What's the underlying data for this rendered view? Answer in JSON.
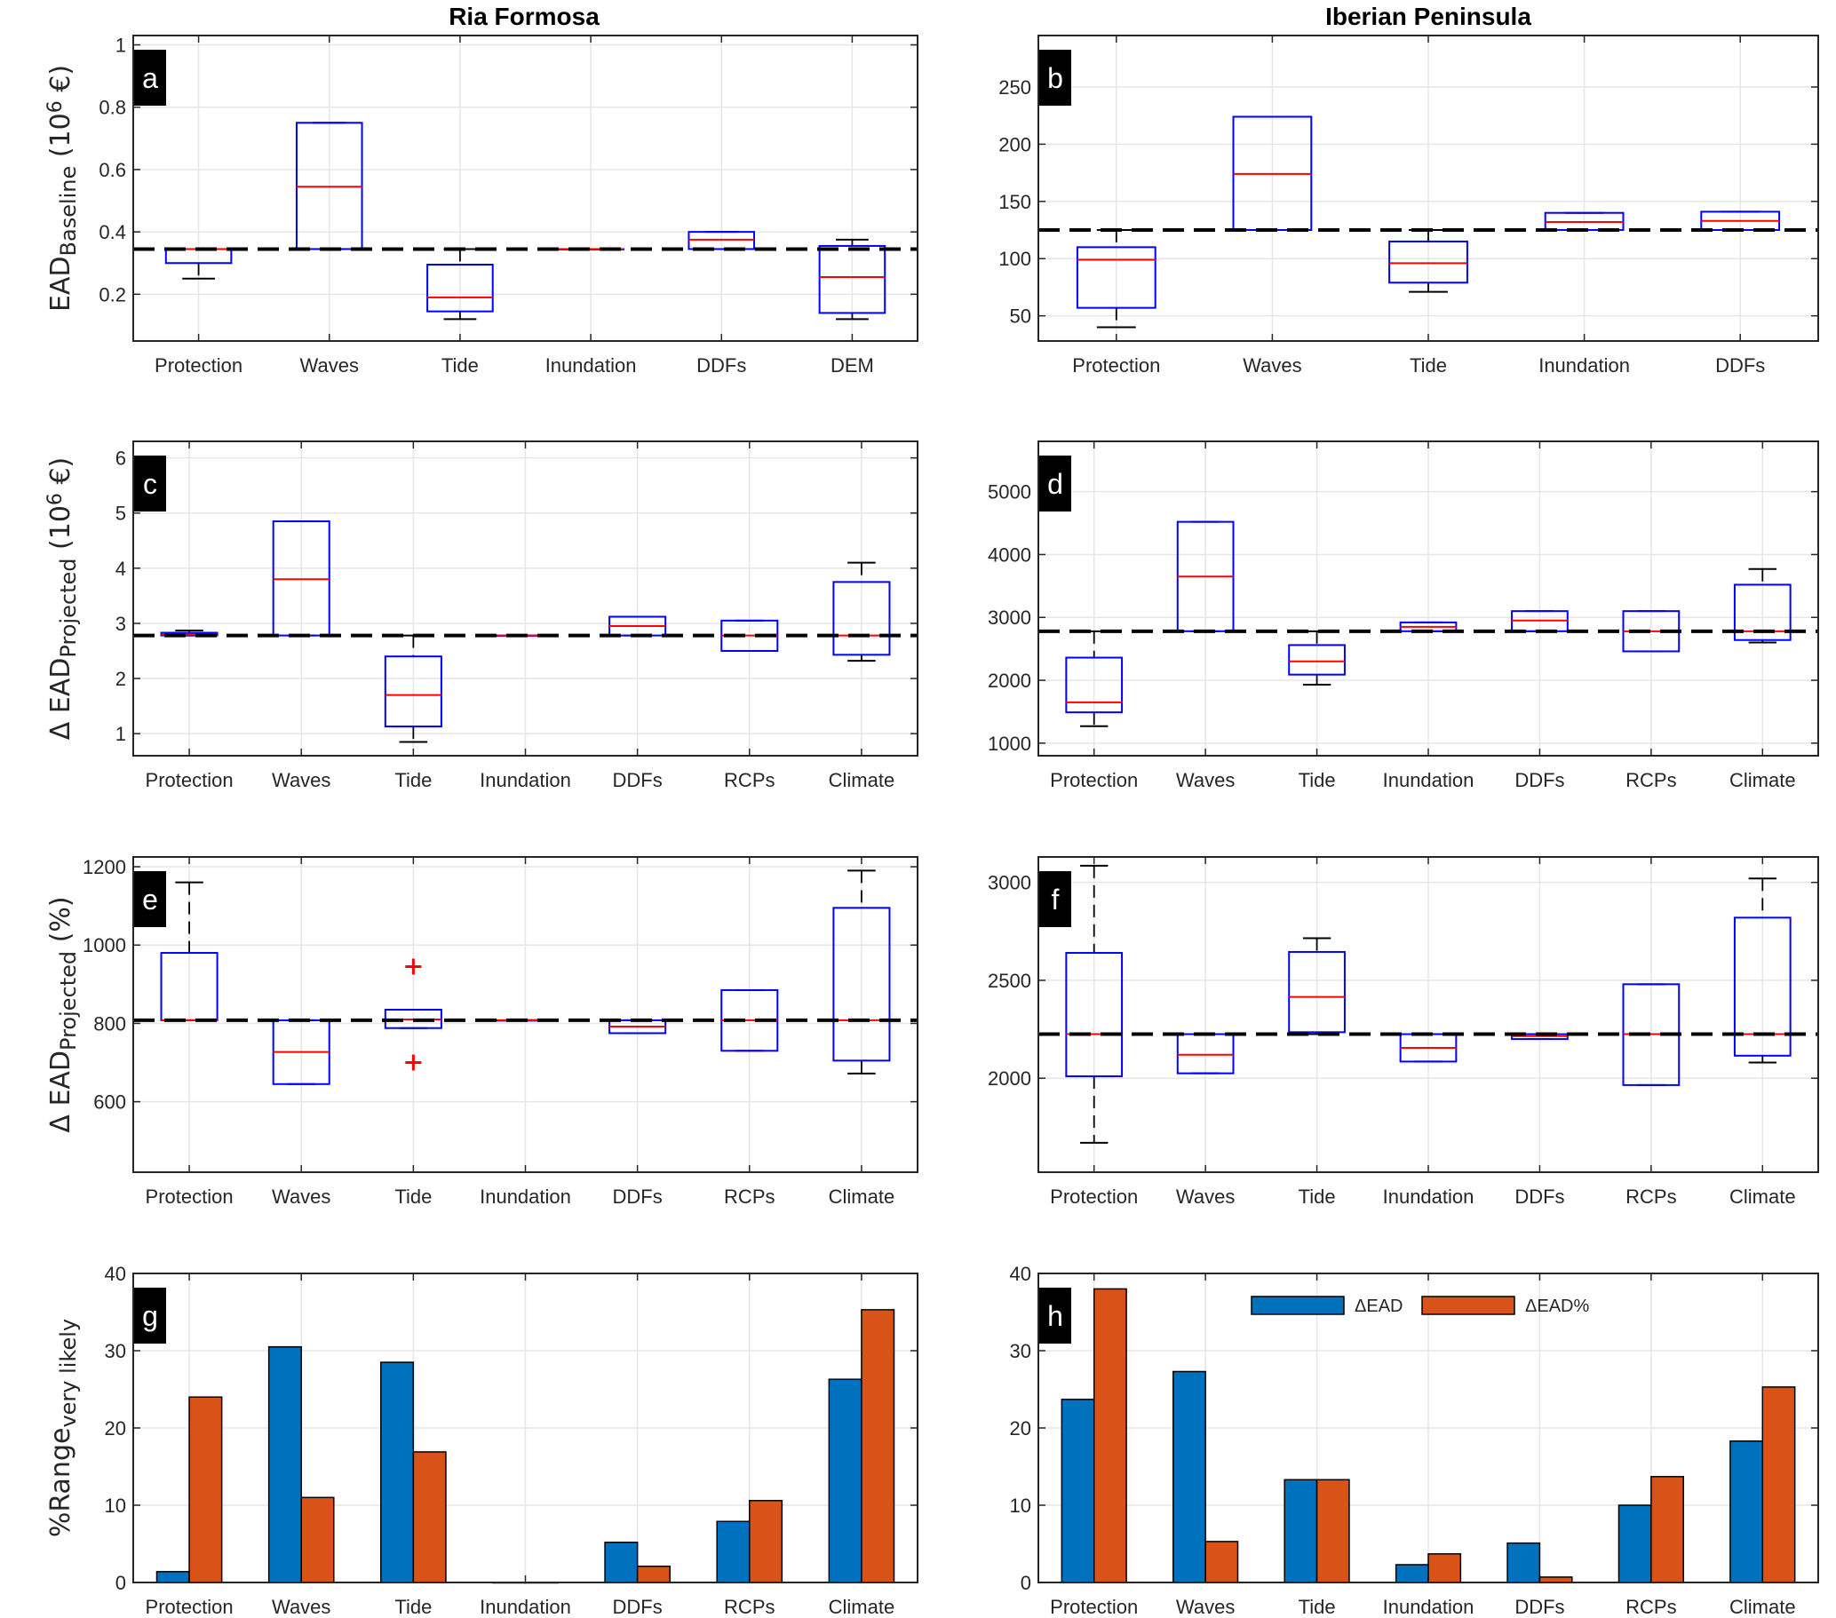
{
  "titles": [
    "Ria Formosa",
    "Iberian Peninsula"
  ],
  "colors": {
    "box": "#0000ff",
    "median": "#ff0000",
    "whisker": "#000000",
    "baseline": "#000000",
    "bar1": "#0072bd",
    "bar2": "#d95319",
    "outlier": "#ff0000",
    "grid": "#e6e6e6"
  },
  "chart_data": [
    {
      "id": "a",
      "type": "boxplot",
      "letter": "a",
      "categories": [
        "Protection",
        "Waves",
        "Tide",
        "Inundation",
        "DDFs",
        "DEM"
      ],
      "ylabel": [
        {
          "t": "EAD",
          "s": ""
        },
        {
          "t": "Baseline",
          "s": "sub"
        },
        {
          "t": " (10",
          "s": ""
        },
        {
          "t": "6",
          "s": "sup"
        },
        {
          "t": " €)",
          "s": ""
        }
      ],
      "ylim": [
        0.05,
        1.03
      ],
      "yticks": [
        0.2,
        0.4,
        0.6,
        0.8,
        1
      ],
      "ytick_labels": [
        "0.2",
        "0.4",
        "0.6",
        "0.8",
        "1"
      ],
      "baseline": 0.345,
      "boxes": [
        [
          0.25,
          0.3,
          0.345,
          0.345,
          0.345
        ],
        [
          0.345,
          0.345,
          0.545,
          0.75,
          0.75
        ],
        [
          0.12,
          0.145,
          0.19,
          0.295,
          0.345
        ],
        [
          0.345,
          0.345,
          0.345,
          0.345,
          0.345
        ],
        [
          0.345,
          0.345,
          0.375,
          0.4,
          0.4
        ],
        [
          0.12,
          0.14,
          0.255,
          0.355,
          0.375
        ]
      ],
      "outliers": []
    },
    {
      "id": "b",
      "type": "boxplot",
      "letter": "b",
      "categories": [
        "Protection",
        "Waves",
        "Tide",
        "Inundation",
        "DDFs"
      ],
      "ylabel": [],
      "ylim": [
        28,
        295
      ],
      "yticks": [
        50,
        100,
        150,
        200,
        250
      ],
      "ytick_labels": [
        "50",
        "100",
        "150",
        "200",
        "250"
      ],
      "baseline": 125,
      "boxes": [
        [
          40,
          57,
          99,
          110,
          125
        ],
        [
          125,
          125,
          174,
          224,
          224
        ],
        [
          71,
          79,
          96,
          115,
          125
        ],
        [
          125,
          125,
          132,
          140,
          140
        ],
        [
          125,
          125,
          133,
          141,
          141
        ]
      ],
      "outliers": []
    },
    {
      "id": "c",
      "type": "boxplot",
      "letter": "c",
      "categories": [
        "Protection",
        "Waves",
        "Tide",
        "Inundation",
        "DDFs",
        "RCPs",
        "Climate"
      ],
      "ylabel": [
        {
          "t": "Δ EAD",
          "s": ""
        },
        {
          "t": "Projected",
          "s": "sub"
        },
        {
          "t": " (10",
          "s": ""
        },
        {
          "t": "6",
          "s": "sup"
        },
        {
          "t": " €)",
          "s": ""
        }
      ],
      "ylim": [
        0.6,
        6.3
      ],
      "yticks": [
        1,
        2,
        3,
        4,
        5,
        6
      ],
      "ytick_labels": [
        "1",
        "2",
        "3",
        "4",
        "5",
        "6"
      ],
      "baseline": 2.78,
      "boxes": [
        [
          2.78,
          2.78,
          2.8,
          2.83,
          2.87
        ],
        [
          2.78,
          2.78,
          3.8,
          4.85,
          4.85
        ],
        [
          0.85,
          1.13,
          1.7,
          2.4,
          2.78
        ],
        [
          2.78,
          2.78,
          2.78,
          2.78,
          2.78
        ],
        [
          2.78,
          2.78,
          2.95,
          3.12,
          3.12
        ],
        [
          2.5,
          2.5,
          2.78,
          3.05,
          3.05
        ],
        [
          2.32,
          2.43,
          2.78,
          3.75,
          4.1
        ]
      ],
      "outliers": []
    },
    {
      "id": "d",
      "type": "boxplot",
      "letter": "d",
      "categories": [
        "Protection",
        "Waves",
        "Tide",
        "Inundation",
        "DDFs",
        "RCPs",
        "Climate"
      ],
      "ylabel": [],
      "ylim": [
        800,
        5800
      ],
      "yticks": [
        1000,
        2000,
        3000,
        4000,
        5000
      ],
      "ytick_labels": [
        "1000",
        "2000",
        "3000",
        "4000",
        "5000"
      ],
      "baseline": 2780,
      "boxes": [
        [
          1270,
          1490,
          1650,
          2360,
          2780
        ],
        [
          2780,
          2780,
          3650,
          4520,
          4520
        ],
        [
          1930,
          2090,
          2300,
          2560,
          2780
        ],
        [
          2780,
          2780,
          2850,
          2920,
          2920
        ],
        [
          2780,
          2780,
          2950,
          3100,
          3100
        ],
        [
          2460,
          2460,
          2780,
          3100,
          3100
        ],
        [
          2600,
          2640,
          2780,
          3520,
          3770
        ]
      ],
      "outliers": []
    },
    {
      "id": "e",
      "type": "boxplot",
      "letter": "e",
      "categories": [
        "Protection",
        "Waves",
        "Tide",
        "Inundation",
        "DDFs",
        "RCPs",
        "Climate"
      ],
      "ylabel": [
        {
          "t": "Δ EAD",
          "s": ""
        },
        {
          "t": "Projected",
          "s": "sub"
        },
        {
          "t": "  (%)",
          "s": ""
        }
      ],
      "ylim": [
        420,
        1225
      ],
      "yticks": [
        600,
        800,
        1000,
        1200
      ],
      "ytick_labels": [
        "600",
        "800",
        "1000",
        "1200"
      ],
      "baseline": 808,
      "boxes": [
        [
          808,
          808,
          808,
          980,
          1160
        ],
        [
          645,
          645,
          727,
          808,
          808
        ],
        [
          788,
          788,
          810,
          835,
          835
        ],
        [
          808,
          808,
          808,
          808,
          808
        ],
        [
          775,
          775,
          792,
          808,
          808
        ],
        [
          730,
          730,
          808,
          885,
          885
        ],
        [
          672,
          705,
          808,
          1095,
          1190
        ]
      ],
      "outliers": [
        [
          3,
          945
        ],
        [
          3,
          700
        ]
      ]
    },
    {
      "id": "f",
      "type": "boxplot",
      "letter": "f",
      "categories": [
        "Protection",
        "Waves",
        "Tide",
        "Inundation",
        "DDFs",
        "RCPs",
        "Climate"
      ],
      "ylabel": [],
      "ylim": [
        1520,
        3130
      ],
      "yticks": [
        2000,
        2500,
        3000
      ],
      "ytick_labels": [
        "2000",
        "2500",
        "3000"
      ],
      "baseline": 2225,
      "boxes": [
        [
          1670,
          2010,
          2225,
          2640,
          3085
        ],
        [
          2025,
          2025,
          2120,
          2225,
          2225
        ],
        [
          2225,
          2235,
          2415,
          2645,
          2715
        ],
        [
          2085,
          2085,
          2155,
          2225,
          2225
        ],
        [
          2200,
          2200,
          2215,
          2225,
          2225
        ],
        [
          1965,
          1965,
          2225,
          2480,
          2480
        ],
        [
          2080,
          2115,
          2225,
          2820,
          3020
        ]
      ],
      "outliers": []
    },
    {
      "id": "g",
      "type": "bar",
      "letter": "g",
      "categories": [
        "Protection",
        "Waves",
        "Tide",
        "Inundation",
        "DDFs",
        "RCPs",
        "Climate"
      ],
      "ylabel": [
        {
          "t": "%Range",
          "s": ""
        },
        {
          "t": "very likely",
          "s": "sub"
        }
      ],
      "ylim": [
        0,
        40
      ],
      "yticks": [
        0,
        10,
        20,
        30,
        40
      ],
      "ytick_labels": [
        "0",
        "10",
        "20",
        "30",
        "40"
      ],
      "series": [
        {
          "name": "ΔEAD",
          "values": [
            1.4,
            30.5,
            28.5,
            0,
            5.2,
            7.9,
            26.3
          ]
        },
        {
          "name": "ΔEAD%",
          "values": [
            24,
            11,
            16.9,
            0,
            2.1,
            10.6,
            35.3
          ]
        }
      ],
      "legend": null
    },
    {
      "id": "h",
      "type": "bar",
      "letter": "h",
      "categories": [
        "Protection",
        "Waves",
        "Tide",
        "Inundation",
        "DDFs",
        "RCPs",
        "Climate"
      ],
      "ylabel": [],
      "ylim": [
        0,
        40
      ],
      "yticks": [
        0,
        10,
        20,
        30,
        40
      ],
      "ytick_labels": [
        "0",
        "10",
        "20",
        "30",
        "40"
      ],
      "series": [
        {
          "name": "ΔEAD",
          "values": [
            23.7,
            27.3,
            13.3,
            2.3,
            5.1,
            10,
            18.3
          ]
        },
        {
          "name": "ΔEAD%",
          "values": [
            38,
            5.3,
            13.3,
            3.7,
            0.7,
            13.7,
            25.3
          ]
        }
      ],
      "legend": "top"
    }
  ]
}
